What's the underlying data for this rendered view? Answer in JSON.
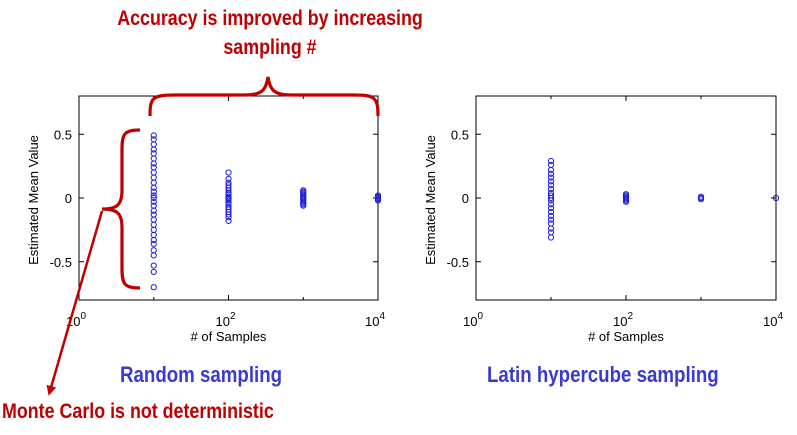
{
  "annotations": {
    "top_line1": "Accuracy is improved by increasing",
    "top_line2": "sampling #",
    "bottom": "Monte Carlo is not deterministic"
  },
  "colors": {
    "annotation": "#c00000",
    "caption": "#3a3acc",
    "marker": "#1f1fdb"
  },
  "chart_data": [
    {
      "type": "scatter",
      "title": "Random sampling",
      "xlabel": "# of Samples",
      "ylabel": "Estimated Mean Value",
      "xscale": "log",
      "xlim": [
        1,
        10000
      ],
      "ylim": [
        -0.8,
        0.8
      ],
      "xticks": [
        {
          "base": "10",
          "exp": "0"
        },
        {
          "base": "10",
          "exp": "2"
        },
        {
          "base": "10",
          "exp": "4"
        }
      ],
      "yticks": [
        "0.5",
        "0",
        "-0.5"
      ],
      "series": [
        {
          "x": 10,
          "values": [
            0.49,
            0.46,
            0.42,
            0.38,
            0.35,
            0.31,
            0.27,
            0.24,
            0.2,
            0.16,
            0.12,
            0.08,
            0.05,
            0.02,
            0.0,
            -0.03,
            -0.06,
            -0.1,
            -0.13,
            -0.17,
            -0.21,
            -0.25,
            -0.29,
            -0.33,
            -0.36,
            -0.41,
            -0.45,
            -0.53,
            -0.58,
            -0.7
          ]
        },
        {
          "x": 100,
          "values": [
            0.2,
            0.15,
            0.12,
            0.1,
            0.08,
            0.06,
            0.04,
            0.03,
            0.01,
            0.0,
            -0.01,
            -0.02,
            -0.04,
            -0.05,
            -0.07,
            -0.09,
            -0.11,
            -0.13,
            -0.15,
            -0.18
          ]
        },
        {
          "x": 1000,
          "values": [
            0.06,
            0.05,
            0.04,
            0.03,
            0.02,
            0.01,
            0.0,
            -0.01,
            -0.02,
            -0.03,
            -0.04,
            -0.05,
            -0.06
          ]
        },
        {
          "x": 10000,
          "values": [
            0.02,
            0.01,
            0.0,
            -0.01,
            -0.02
          ]
        }
      ]
    },
    {
      "type": "scatter",
      "title": "Latin hypercube sampling",
      "xlabel": "# of Samples",
      "ylabel": "Estimated Mean Value",
      "xscale": "log",
      "xlim": [
        1,
        10000
      ],
      "ylim": [
        -0.8,
        0.8
      ],
      "xticks": [
        {
          "base": "10",
          "exp": "0"
        },
        {
          "base": "10",
          "exp": "2"
        },
        {
          "base": "10",
          "exp": "4"
        }
      ],
      "yticks": [
        "0.5",
        "0",
        "-0.5"
      ],
      "series": [
        {
          "x": 10,
          "values": [
            0.29,
            0.26,
            0.22,
            0.19,
            0.16,
            0.13,
            0.1,
            0.07,
            0.04,
            0.02,
            0.0,
            -0.02,
            -0.05,
            -0.08,
            -0.11,
            -0.14,
            -0.17,
            -0.2,
            -0.24,
            -0.27,
            -0.31
          ]
        },
        {
          "x": 100,
          "values": [
            0.03,
            0.02,
            0.01,
            0.0,
            -0.01,
            -0.02,
            -0.03
          ]
        },
        {
          "x": 1000,
          "values": [
            0.01,
            0.0,
            -0.01
          ]
        },
        {
          "x": 10000,
          "values": [
            0.0
          ]
        }
      ]
    }
  ]
}
